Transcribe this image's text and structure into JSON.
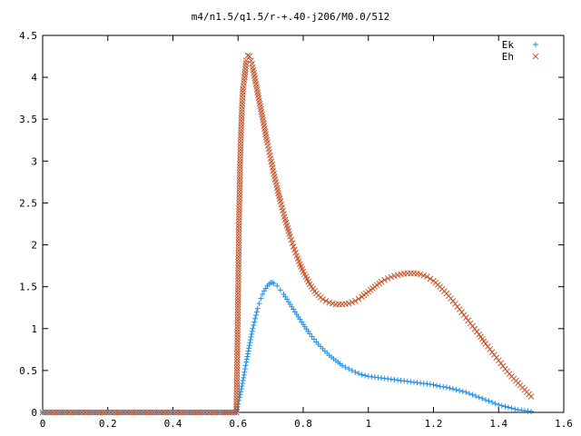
{
  "chart_data": {
    "type": "scatter",
    "title": "m4/n1.5/q1.5/r-+.40-j206/M0.0/512",
    "xlabel": "",
    "ylabel": "",
    "xlim": [
      0,
      1.6
    ],
    "ylim": [
      0,
      4.5
    ],
    "xticks": [
      "0",
      "0.2",
      "0.4",
      "0.6",
      "0.8",
      "1",
      "1.2",
      "1.4",
      "1.6"
    ],
    "yticks": [
      "0",
      "0.5",
      "1",
      "1.5",
      "2",
      "2.5",
      "3",
      "3.5",
      "4",
      "4.5"
    ],
    "grid": false,
    "legend_position": "top-right",
    "series": [
      {
        "name": "Ek",
        "marker": "plus",
        "color": "#1e8fe6",
        "x": [
          0.0,
          0.05,
          0.1,
          0.15,
          0.2,
          0.25,
          0.3,
          0.35,
          0.4,
          0.45,
          0.5,
          0.55,
          0.595,
          0.6,
          0.605,
          0.61,
          0.615,
          0.62,
          0.625,
          0.63,
          0.635,
          0.64,
          0.645,
          0.65,
          0.655,
          0.66,
          0.665,
          0.67,
          0.675,
          0.68,
          0.685,
          0.69,
          0.695,
          0.7,
          0.705,
          0.71,
          0.72,
          0.73,
          0.74,
          0.75,
          0.76,
          0.77,
          0.78,
          0.8,
          0.82,
          0.84,
          0.86,
          0.88,
          0.9,
          0.92,
          0.94,
          0.96,
          0.98,
          1.0,
          1.02,
          1.04,
          1.06,
          1.08,
          1.1,
          1.12,
          1.14,
          1.16,
          1.18,
          1.2,
          1.22,
          1.24,
          1.26,
          1.28,
          1.3,
          1.32,
          1.34,
          1.36,
          1.38,
          1.4,
          1.42,
          1.44,
          1.46,
          1.48,
          1.5
        ],
        "y": [
          0.0,
          0.0,
          0.0,
          0.0,
          0.0,
          0.0,
          0.0,
          0.0,
          0.0,
          0.0,
          0.0,
          0.0,
          0.0,
          0.1,
          0.18,
          0.28,
          0.38,
          0.48,
          0.6,
          0.7,
          0.8,
          0.9,
          1.0,
          1.08,
          1.16,
          1.24,
          1.3,
          1.36,
          1.41,
          1.45,
          1.48,
          1.51,
          1.53,
          1.55,
          1.55,
          1.54,
          1.51,
          1.46,
          1.41,
          1.35,
          1.29,
          1.23,
          1.17,
          1.05,
          0.94,
          0.84,
          0.76,
          0.68,
          0.62,
          0.56,
          0.52,
          0.48,
          0.45,
          0.43,
          0.42,
          0.41,
          0.4,
          0.39,
          0.38,
          0.37,
          0.36,
          0.35,
          0.34,
          0.33,
          0.31,
          0.3,
          0.28,
          0.26,
          0.24,
          0.21,
          0.18,
          0.15,
          0.12,
          0.09,
          0.07,
          0.05,
          0.03,
          0.02,
          0.01
        ]
      },
      {
        "name": "Eh",
        "marker": "cross",
        "color": "#c2562c",
        "x": [
          0.0,
          0.05,
          0.1,
          0.15,
          0.2,
          0.25,
          0.3,
          0.35,
          0.4,
          0.45,
          0.5,
          0.55,
          0.595,
          0.6,
          0.603,
          0.606,
          0.609,
          0.612,
          0.615,
          0.62,
          0.625,
          0.63,
          0.635,
          0.64,
          0.645,
          0.65,
          0.655,
          0.66,
          0.665,
          0.67,
          0.675,
          0.68,
          0.69,
          0.7,
          0.71,
          0.72,
          0.73,
          0.74,
          0.75,
          0.76,
          0.77,
          0.78,
          0.79,
          0.8,
          0.82,
          0.84,
          0.86,
          0.88,
          0.9,
          0.92,
          0.94,
          0.96,
          0.98,
          1.0,
          1.02,
          1.04,
          1.06,
          1.08,
          1.1,
          1.12,
          1.14,
          1.16,
          1.18,
          1.2,
          1.22,
          1.24,
          1.26,
          1.28,
          1.3,
          1.32,
          1.34,
          1.36,
          1.38,
          1.4,
          1.42,
          1.44,
          1.46,
          1.48,
          1.5
        ],
        "y": [
          0.0,
          0.0,
          0.0,
          0.0,
          0.0,
          0.0,
          0.0,
          0.0,
          0.0,
          0.0,
          0.0,
          0.0,
          0.0,
          1.39,
          2.33,
          2.93,
          3.34,
          3.65,
          3.86,
          4.0,
          4.2,
          4.26,
          4.25,
          4.2,
          4.12,
          4.02,
          3.92,
          3.82,
          3.72,
          3.62,
          3.52,
          3.42,
          3.22,
          3.03,
          2.85,
          2.68,
          2.52,
          2.37,
          2.23,
          2.1,
          1.98,
          1.87,
          1.77,
          1.68,
          1.53,
          1.42,
          1.35,
          1.31,
          1.29,
          1.29,
          1.3,
          1.33,
          1.38,
          1.44,
          1.5,
          1.56,
          1.6,
          1.63,
          1.65,
          1.66,
          1.66,
          1.65,
          1.62,
          1.57,
          1.5,
          1.42,
          1.33,
          1.23,
          1.13,
          1.03,
          0.93,
          0.82,
          0.72,
          0.62,
          0.52,
          0.43,
          0.35,
          0.27,
          0.19
        ]
      }
    ]
  }
}
